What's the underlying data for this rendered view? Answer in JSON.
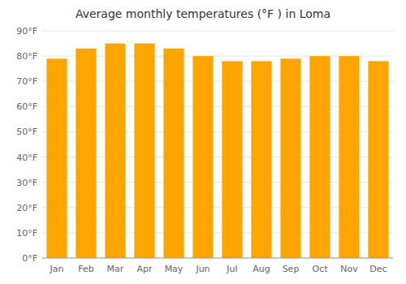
{
  "chart_data": {
    "type": "bar",
    "title": "Average monthly temperatures (°F ) in Loma",
    "categories": [
      "Jan",
      "Feb",
      "Mar",
      "Apr",
      "May",
      "Jun",
      "Jul",
      "Aug",
      "Sep",
      "Oct",
      "Nov",
      "Dec"
    ],
    "values": [
      79,
      83,
      85,
      85,
      83,
      80,
      78,
      78,
      79,
      80,
      80,
      78
    ],
    "color": "#FFA500",
    "ylim": [
      0,
      90
    ],
    "yticks": [
      {
        "value": 0,
        "label": "0°F"
      },
      {
        "value": 10,
        "label": "10°F"
      },
      {
        "value": 20,
        "label": "20°F"
      },
      {
        "value": 30,
        "label": "30°F"
      },
      {
        "value": 40,
        "label": "40°F"
      },
      {
        "value": 50,
        "label": "50°F"
      },
      {
        "value": 60,
        "label": "60°F"
      },
      {
        "value": 70,
        "label": "70°F"
      },
      {
        "value": 80,
        "label": "80°F"
      },
      {
        "value": 90,
        "label": "90°F"
      }
    ],
    "grid": true
  }
}
